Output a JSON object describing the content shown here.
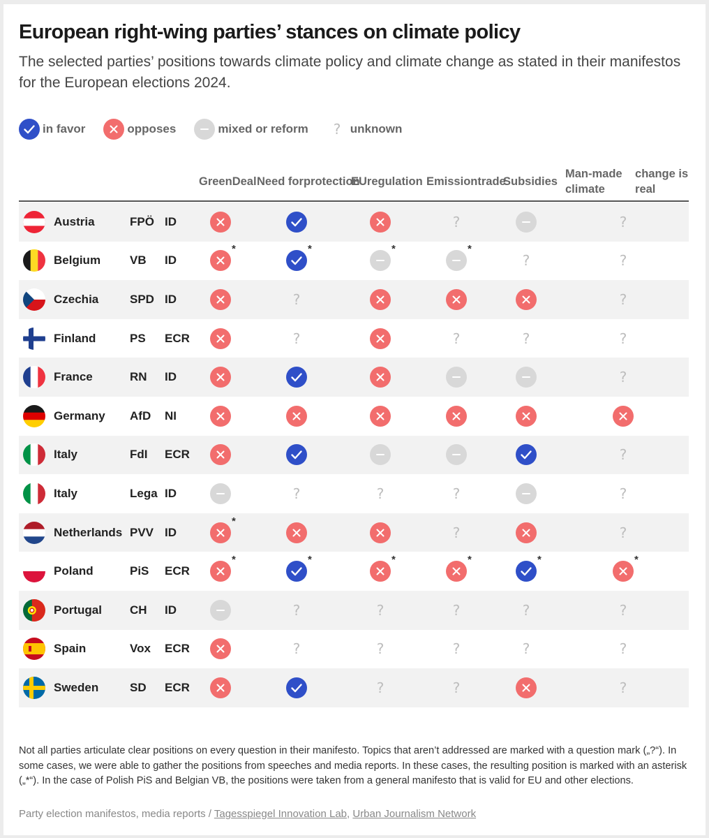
{
  "title": "European right-wing parties’ stances on climate policy",
  "subtitle": "The selected parties’ positions towards climate policy and climate change as stated in their manifestos for the European elections 2024.",
  "colors": {
    "favor": "#2f4fc8",
    "opposes": "#f26d6d",
    "mixed": "#d8d8d8",
    "unknown": "#bdbdbd"
  },
  "legend": [
    {
      "status": "favor",
      "label": "in favor"
    },
    {
      "status": "opposes",
      "label": "opposes"
    },
    {
      "status": "mixed",
      "label": "mixed or reform"
    },
    {
      "status": "unknown",
      "label": "unknown"
    }
  ],
  "chart_data": {
    "type": "table",
    "columns": [
      "Green Deal",
      "Need for protection",
      "EU regulation",
      "Emission trade",
      "Subsidies",
      "Man-made climate change is real"
    ],
    "header_lines": [
      [
        "Green",
        "Deal"
      ],
      [
        "Need for",
        "protection"
      ],
      [
        "EU",
        "regulation"
      ],
      [
        "Emission",
        "trade"
      ],
      [
        "Subsidies"
      ],
      [
        "Man-made climate",
        "change is real"
      ]
    ],
    "rows": [
      {
        "country": "Austria",
        "flag": "austria-flag",
        "party": "FPÖ",
        "group": "ID",
        "values": [
          "opposes",
          "favor",
          "opposes",
          "unknown",
          "mixed",
          "unknown"
        ],
        "asterisk": [
          false,
          false,
          false,
          false,
          false,
          false
        ]
      },
      {
        "country": "Belgium",
        "flag": "belgium-flag",
        "party": "VB",
        "group": "ID",
        "values": [
          "opposes",
          "favor",
          "mixed",
          "mixed",
          "unknown",
          "unknown"
        ],
        "asterisk": [
          true,
          true,
          true,
          true,
          false,
          false
        ]
      },
      {
        "country": "Czechia",
        "flag": "czechia-flag",
        "party": "SPD",
        "group": "ID",
        "values": [
          "opposes",
          "unknown",
          "opposes",
          "opposes",
          "opposes",
          "unknown"
        ],
        "asterisk": [
          false,
          false,
          false,
          false,
          false,
          false
        ]
      },
      {
        "country": "Finland",
        "flag": "finland-flag",
        "party": "PS",
        "group": "ECR",
        "values": [
          "opposes",
          "unknown",
          "opposes",
          "unknown",
          "unknown",
          "unknown"
        ],
        "asterisk": [
          false,
          false,
          false,
          false,
          false,
          false
        ]
      },
      {
        "country": "France",
        "flag": "france-flag",
        "party": "RN",
        "group": "ID",
        "values": [
          "opposes",
          "favor",
          "opposes",
          "mixed",
          "mixed",
          "unknown"
        ],
        "asterisk": [
          false,
          false,
          false,
          false,
          false,
          false
        ]
      },
      {
        "country": "Germany",
        "flag": "germany-flag",
        "party": "AfD",
        "group": "NI",
        "values": [
          "opposes",
          "opposes",
          "opposes",
          "opposes",
          "opposes",
          "opposes"
        ],
        "asterisk": [
          false,
          false,
          false,
          false,
          false,
          false
        ]
      },
      {
        "country": "Italy",
        "flag": "italy-flag",
        "party": "FdI",
        "group": "ECR",
        "values": [
          "opposes",
          "favor",
          "mixed",
          "mixed",
          "favor",
          "unknown"
        ],
        "asterisk": [
          false,
          false,
          false,
          false,
          false,
          false
        ]
      },
      {
        "country": "Italy",
        "flag": "italy-flag",
        "party": "Lega",
        "group": "ID",
        "values": [
          "mixed",
          "unknown",
          "unknown",
          "unknown",
          "mixed",
          "unknown"
        ],
        "asterisk": [
          false,
          false,
          false,
          false,
          false,
          false
        ]
      },
      {
        "country": "Netherlands",
        "flag": "netherlands-flag",
        "party": "PVV",
        "group": "ID",
        "values": [
          "opposes",
          "opposes",
          "opposes",
          "unknown",
          "opposes",
          "unknown"
        ],
        "asterisk": [
          true,
          false,
          false,
          false,
          false,
          false
        ]
      },
      {
        "country": "Poland",
        "flag": "poland-flag",
        "party": "PiS",
        "group": "ECR",
        "values": [
          "opposes",
          "favor",
          "opposes",
          "opposes",
          "favor",
          "opposes"
        ],
        "asterisk": [
          true,
          true,
          true,
          true,
          true,
          true
        ]
      },
      {
        "country": "Portugal",
        "flag": "portugal-flag",
        "party": "CH",
        "group": "ID",
        "values": [
          "mixed",
          "unknown",
          "unknown",
          "unknown",
          "unknown",
          "unknown"
        ],
        "asterisk": [
          false,
          false,
          false,
          false,
          false,
          false
        ]
      },
      {
        "country": "Spain",
        "flag": "spain-flag",
        "party": "Vox",
        "group": "ECR",
        "values": [
          "opposes",
          "unknown",
          "unknown",
          "unknown",
          "unknown",
          "unknown"
        ],
        "asterisk": [
          false,
          false,
          false,
          false,
          false,
          false
        ]
      },
      {
        "country": "Sweden",
        "flag": "sweden-flag",
        "party": "SD",
        "group": "ECR",
        "values": [
          "opposes",
          "favor",
          "unknown",
          "unknown",
          "opposes",
          "unknown"
        ],
        "asterisk": [
          false,
          false,
          false,
          false,
          false,
          false
        ]
      }
    ]
  },
  "asterisk_symbol": "*",
  "note": "Not all parties articulate clear positions on every question in their manifesto. Topics that aren’t addressed are marked with a question mark („?“). In some cases, we were able to gather the positions from speeches and media reports. In these cases, the resulting position is marked with an asterisk („*“). In the case of Polish PiS and Belgian VB, the positions were taken from a general manifesto that is valid for EU and other elections.",
  "source": {
    "prefix": "Party election manifestos, media reports / ",
    "link1": "Tagesspiegel Innovation Lab",
    "separator": ", ",
    "link2": "Urban Journalism Network"
  }
}
